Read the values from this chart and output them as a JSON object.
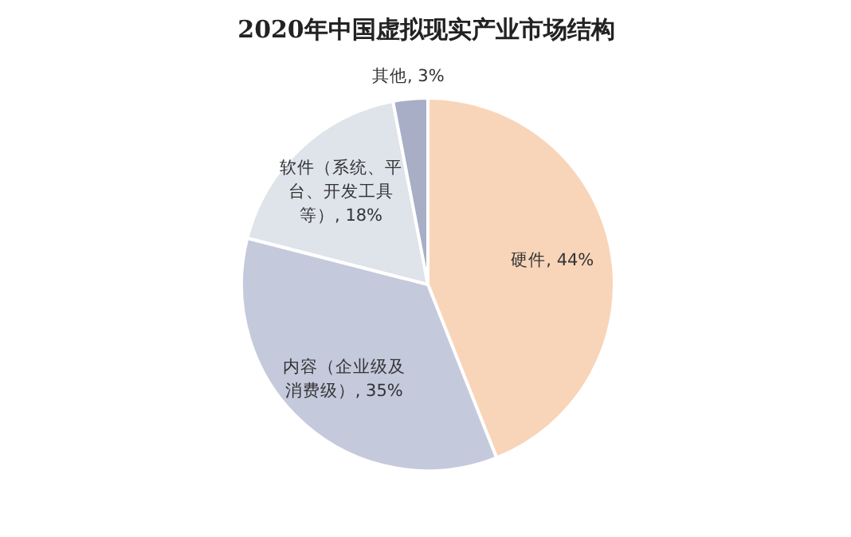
{
  "chart_data": {
    "type": "pie",
    "title": "2020年中国虚拟现实产业市场结构",
    "categories": [
      "硬件",
      "内容（企业级及消费级）",
      "软件（系统、平台、开发工具等）",
      "其他"
    ],
    "values": [
      44,
      35,
      18,
      3
    ],
    "value_labels": [
      "44%",
      "35%",
      "18%",
      "3%"
    ],
    "colors": [
      "#f8d5b9",
      "#c5c9dc",
      "#dfe3ea",
      "#a7aec6"
    ],
    "legend": false
  }
}
